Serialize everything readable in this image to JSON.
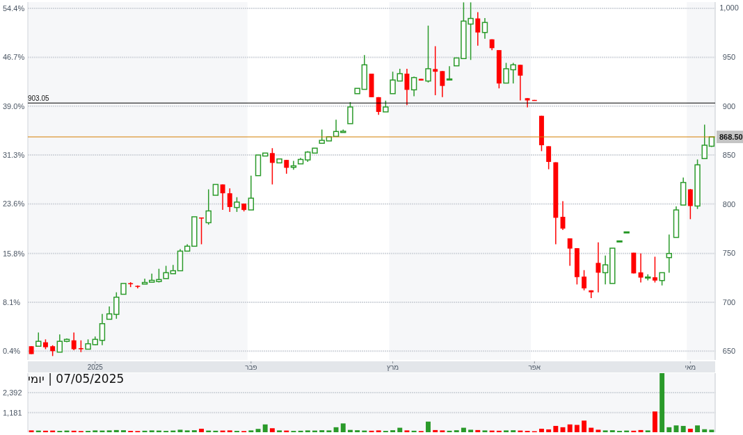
{
  "chart_data": [
    {
      "type": "candlestick",
      "categories": [
        null,
        null,
        null,
        null,
        null,
        null,
        null,
        null,
        null,
        "2025",
        null,
        null,
        null,
        null,
        null,
        null,
        null,
        null,
        null,
        null,
        null,
        null,
        null,
        null,
        null,
        null,
        null,
        null,
        null,
        null,
        null,
        "פבר",
        null,
        null,
        null,
        null,
        null,
        null,
        null,
        null,
        null,
        null,
        null,
        null,
        null,
        null,
        null,
        null,
        null,
        null,
        null,
        "מרץ",
        null,
        null,
        null,
        null,
        null,
        null,
        null,
        null,
        null,
        null,
        null,
        null,
        null,
        null,
        null,
        null,
        null,
        null,
        null,
        "אפר",
        null,
        null,
        null,
        null,
        null,
        null,
        null,
        null,
        null,
        null,
        null,
        null,
        null,
        null,
        null,
        null,
        null,
        null,
        null,
        null,
        null,
        "מאי",
        null,
        null,
        null
      ],
      "series": [
        {
          "axis": "y2",
          "ohlc": [
            [
              655,
              655,
              647,
              647
            ],
            [
              655,
              669,
              655,
              660
            ],
            [
              659,
              662,
              652,
              654
            ],
            [
              655,
              656,
              645,
              650
            ],
            [
              649,
              667,
              649,
              660
            ],
            [
              660,
              663,
              659,
              662
            ],
            [
              661,
              669,
              651,
              652
            ],
            [
              653,
              661,
              649,
              652.5
            ],
            [
              652,
              662,
              652,
              657.5
            ],
            [
              656.6,
              665,
              656,
              662
            ],
            [
              661,
              688,
              656,
              678
            ],
            [
              682.5,
              695.5,
              682.5,
              688
            ],
            [
              687.5,
              710,
              683,
              705
            ],
            [
              708,
              719,
              708,
              719
            ],
            [
              719.3,
              720.3,
              715.3,
              719
            ],
            [
              716.6,
              717,
              714,
              716.3
            ],
            [
              718.4,
              724,
              718.4,
              720
            ],
            [
              720.3,
              729,
              720.3,
              722.2
            ],
            [
              721,
              734,
              720,
              723
            ],
            [
              724,
              737,
              724,
              730
            ],
            [
              729,
              738,
              729,
              732
            ],
            [
              732,
              754,
              732,
              752
            ],
            [
              752,
              759,
              752,
              757
            ],
            [
              757,
              787,
              757,
              787
            ],
            [
              786.3,
              786.3,
              759,
              786
            ],
            [
              781,
              815,
              779,
              793
            ],
            [
              809,
              820,
              809,
              820
            ],
            [
              820,
              820,
              794,
              811
            ],
            [
              811,
              816,
              792,
              797
            ],
            [
              796.5,
              807,
              792,
              802
            ],
            [
              800.5,
              800.5,
              792.5,
              794
            ],
            [
              794,
              829,
              794,
              806
            ],
            [
              829,
              850,
              829,
              850
            ],
            [
              849,
              852,
              849,
              852
            ],
            [
              852,
              857,
              820,
              842
            ],
            [
              842,
              846,
              842,
              846
            ],
            [
              845,
              845,
              831,
              837
            ],
            [
              837.5,
              844,
              835,
              839
            ],
            [
              841,
              847,
              841,
              845.5
            ],
            [
              845,
              854,
              843,
              853
            ],
            [
              852,
              857,
              852,
              857
            ],
            [
              862,
              876,
              862,
              865
            ],
            [
              864.4,
              869,
              864.4,
              868.6
            ],
            [
              869,
              886,
              869,
              874
            ],
            [
              873,
              876,
              873,
              874.3
            ],
            [
              882,
              904,
              882,
              899
            ],
            [
              912.6,
              918,
              912.6,
              918
            ],
            [
              917,
              952,
              917,
              942
            ],
            [
              933,
              933,
              909,
              909
            ],
            [
              909,
              909,
              891,
              894
            ],
            [
              894,
              905.5,
              894,
              899
            ],
            [
              912.6,
              935,
              912.6,
              926.5
            ],
            [
              925.5,
              938,
              925.5,
              933
            ],
            [
              933,
              938,
              901,
              916.5
            ],
            [
              916.5,
              930,
              910,
              929
            ],
            [
              927.7,
              927.7,
              926,
              926
            ],
            [
              925.5,
              982,
              924,
              938
            ],
            [
              937.7,
              961,
              911,
              935
            ],
            [
              935.6,
              935.6,
              909,
              920.5
            ],
            [
              927.4,
              940.6,
              927,
              927.6
            ],
            [
              941,
              949,
              941,
              949
            ],
            [
              948.4,
              1005.7,
              948.4,
              986.6
            ],
            [
              983.6,
              1005.7,
              947,
              989.3
            ],
            [
              989.3,
              995.7,
              961.6,
              975
            ],
            [
              975,
              989.7,
              968.7,
              985.2
            ],
            [
              968,
              968,
              957,
              959
            ],
            [
              957,
              957,
              918,
              923
            ],
            [
              923.4,
              944,
              923.4,
              938
            ],
            [
              937,
              944,
              923,
              942
            ],
            [
              942,
              942,
              905.7,
              931
            ],
            [
              908,
              908,
              898.6,
              905.7
            ],
            [
              906.2,
              906.2,
              905.7,
              905.7
            ],
            [
              890,
              890,
              854,
              860
            ],
            [
              859,
              859,
              835.5,
              843
            ],
            [
              842.6,
              842.6,
              759,
              786
            ],
            [
              787,
              803,
              773.5,
              775
            ],
            [
              765,
              765,
              737,
              754.6
            ],
            [
              755,
              755,
              718,
              725.5
            ],
            [
              726,
              732.6,
              712,
              714
            ],
            [
              712,
              712,
              704,
              710
            ],
            [
              740,
              761,
              710,
              730
            ],
            [
              730,
              747.5,
              718,
              738
            ],
            [
              719,
              755,
              719,
              755
            ],
            [
              762,
              762.4,
              762,
              762.4
            ],
            [
              771.4,
              771.6,
              771.4,
              771.6
            ],
            [
              750.4,
              750.4,
              729.3,
              729.3
            ],
            [
              730.3,
              749.6,
              720,
              725
            ],
            [
              725.4,
              728.4,
              722.2,
              725.6
            ],
            [
              725.3,
              746.3,
              720,
              722
            ],
            [
              722,
              730,
              717,
              730
            ],
            [
              745.4,
              769,
              730,
              749.6
            ],
            [
              766,
              797.6,
              766,
              794
            ],
            [
              799,
              827,
              799,
              822
            ],
            [
              815,
              815.4,
              784.6,
              798
            ],
            [
              798,
              845.5,
              795,
              840
            ],
            [
              846.4,
              881,
              846.4,
              860
            ],
            [
              859,
              868.5,
              858.3,
              868.5
            ]
          ],
          "colors": [
            "#ff0000",
            "#2a9a2a",
            "#ff0000",
            "#ff0000",
            "#2a9a2a",
            "#2a9a2a",
            "#ff0000",
            "#ff0000",
            "#2a9a2a",
            "#2a9a2a",
            "#2a9a2a",
            "#2a9a2a",
            "#2a9a2a",
            "#2a9a2a",
            "#ff0000",
            "#ff0000",
            "#2a9a2a",
            "#2a9a2a",
            "#2a9a2a",
            "#2a9a2a",
            "#2a9a2a",
            "#2a9a2a",
            "#2a9a2a",
            "#2a9a2a",
            "#ff0000",
            "#2a9a2a",
            "#2a9a2a",
            "#ff0000",
            "#ff0000",
            "#2a9a2a",
            "#ff0000",
            "#2a9a2a",
            "#2a9a2a",
            "#2a9a2a",
            "#ff0000",
            "#2a9a2a",
            "#ff0000",
            "#2a9a2a",
            "#2a9a2a",
            "#2a9a2a",
            "#2a9a2a",
            "#2a9a2a",
            "#2a9a2a",
            "#2a9a2a",
            "#2a9a2a",
            "#2a9a2a",
            "#2a9a2a",
            "#2a9a2a",
            "#ff0000",
            "#ff0000",
            "#2a9a2a",
            "#2a9a2a",
            "#2a9a2a",
            "#ff0000",
            "#2a9a2a",
            "#ff0000",
            "#2a9a2a",
            "#ff0000",
            "#ff0000",
            "#2a9a2a",
            "#2a9a2a",
            "#2a9a2a",
            "#2a9a2a",
            "#ff0000",
            "#2a9a2a",
            "#ff0000",
            "#ff0000",
            "#2a9a2a",
            "#2a9a2a",
            "#ff0000",
            "#ff0000",
            "#ff0000",
            "#ff0000",
            "#ff0000",
            "#ff0000",
            "#ff0000",
            "#ff0000",
            "#ff0000",
            "#ff0000",
            "#ff0000",
            "#ff0000",
            "#2a9a2a",
            "#2a9a2a",
            "#2a9a2a",
            "#2a9a2a",
            "#ff0000",
            "#ff0000",
            "#2a9a2a",
            "#ff0000",
            "#2a9a2a",
            "#2a9a2a",
            "#2a9a2a",
            "#2a9a2a",
            "#ff0000",
            "#2a9a2a",
            "#2a9a2a",
            "#2a9a2a"
          ]
        }
      ],
      "ylim": [
        -0.99,
        55.39
      ],
      "yticks": [
        {
          "value": 0.4,
          "label": "0.4%"
        },
        {
          "value": 8.1,
          "label": "8.1%"
        },
        {
          "value": 15.8,
          "label": "15.8%"
        },
        {
          "value": 23.6,
          "label": "23.6%"
        },
        {
          "value": 31.3,
          "label": "31.3%"
        },
        {
          "value": 39.0,
          "label": "39.0%"
        },
        {
          "value": 46.7,
          "label": "46.7%"
        },
        {
          "value": 54.4,
          "label": "54.4%"
        }
      ],
      "y2lim": [
        641,
        1006
      ],
      "y2ticks": [
        650,
        700,
        750,
        800,
        850,
        900,
        950,
        {
          "value": 1000,
          "label": "1,000"
        }
      ],
      "grid": "y",
      "ref_lines": [
        {
          "axis": "y2",
          "value": 903.05,
          "label": "903.05",
          "color": "#000000"
        },
        {
          "axis": "y2",
          "value": 868.5,
          "label": "868.50",
          "color": "#d47f00"
        }
      ],
      "bands": [
        {
          "axis": "x",
          "from": "פבר",
          "to": "מרץ",
          "color": "#ffffff"
        },
        {
          "axis": "x",
          "from": "אפר",
          "to": "מאי",
          "color": "#ffffff"
        }
      ]
    },
    {
      "type": "bar",
      "categories": [
        null,
        null,
        null,
        null,
        null,
        null,
        null,
        null,
        null,
        null,
        null,
        null,
        null,
        null,
        null,
        null,
        null,
        null,
        null,
        null,
        null,
        null,
        null,
        null,
        null,
        null,
        null,
        null,
        null,
        null,
        null,
        null,
        null,
        null,
        null,
        null,
        null,
        null,
        null,
        null,
        null,
        null,
        null,
        null,
        null,
        null,
        null,
        null,
        null,
        null,
        null,
        null,
        null,
        null,
        null,
        null,
        null,
        null,
        null,
        null,
        null,
        null,
        null,
        null,
        null,
        null,
        null,
        null,
        null,
        null,
        null,
        null,
        null,
        null,
        null,
        null,
        null,
        null,
        null,
        null,
        null,
        null,
        null,
        null,
        null,
        null,
        null,
        null,
        null,
        null,
        null,
        null,
        null,
        null,
        null,
        null,
        null
      ],
      "values": [
        110,
        100,
        90,
        100,
        80,
        100,
        90,
        70,
        80,
        110,
        100,
        110,
        130,
        120,
        80,
        70,
        90,
        110,
        100,
        80,
        100,
        150,
        110,
        120,
        210,
        100,
        90,
        100,
        110,
        80,
        70,
        110,
        200,
        470,
        240,
        110,
        100,
        80,
        90,
        110,
        100,
        120,
        110,
        300,
        530,
        140,
        120,
        100,
        90,
        110,
        80,
        120,
        270,
        110,
        90,
        70,
        640,
        130,
        110,
        90,
        120,
        270,
        150,
        130,
        110,
        100,
        90,
        110,
        120,
        100,
        80,
        60,
        210,
        170,
        380,
        300,
        470,
        440,
        700,
        270,
        150,
        110,
        120,
        80,
        100,
        90,
        130,
        110,
        1250,
        3560,
        300,
        410,
        380,
        210,
        410,
        180,
        150
      ],
      "colors": [
        "#ff0000",
        "#2a9a2a",
        "#ff0000",
        "#ff0000",
        "#2a9a2a",
        "#2a9a2a",
        "#ff0000",
        "#ff0000",
        "#2a9a2a",
        "#2a9a2a",
        "#2a9a2a",
        "#2a9a2a",
        "#2a9a2a",
        "#2a9a2a",
        "#ff0000",
        "#ff0000",
        "#2a9a2a",
        "#2a9a2a",
        "#2a9a2a",
        "#2a9a2a",
        "#2a9a2a",
        "#2a9a2a",
        "#2a9a2a",
        "#2a9a2a",
        "#ff0000",
        "#2a9a2a",
        "#2a9a2a",
        "#ff0000",
        "#ff0000",
        "#2a9a2a",
        "#ff0000",
        "#2a9a2a",
        "#2a9a2a",
        "#2a9a2a",
        "#ff0000",
        "#2a9a2a",
        "#ff0000",
        "#2a9a2a",
        "#2a9a2a",
        "#2a9a2a",
        "#2a9a2a",
        "#2a9a2a",
        "#2a9a2a",
        "#2a9a2a",
        "#2a9a2a",
        "#2a9a2a",
        "#2a9a2a",
        "#2a9a2a",
        "#ff0000",
        "#ff0000",
        "#2a9a2a",
        "#2a9a2a",
        "#2a9a2a",
        "#ff0000",
        "#2a9a2a",
        "#ff0000",
        "#2a9a2a",
        "#ff0000",
        "#ff0000",
        "#2a9a2a",
        "#2a9a2a",
        "#2a9a2a",
        "#2a9a2a",
        "#ff0000",
        "#2a9a2a",
        "#ff0000",
        "#ff0000",
        "#2a9a2a",
        "#2a9a2a",
        "#ff0000",
        "#ff0000",
        "#ff0000",
        "#ff0000",
        "#ff0000",
        "#ff0000",
        "#ff0000",
        "#ff0000",
        "#ff0000",
        "#ff0000",
        "#ff0000",
        "#ff0000",
        "#2a9a2a",
        "#2a9a2a",
        "#2a9a2a",
        "#2a9a2a",
        "#ff0000",
        "#ff0000",
        "#2a9a2a",
        "#ff0000",
        "#2a9a2a",
        "#2a9a2a",
        "#2a9a2a",
        "#2a9a2a",
        "#ff0000",
        "#2a9a2a",
        "#2a9a2a",
        "#2a9a2a"
      ],
      "ylim": [
        0,
        3560
      ],
      "yticks": [
        {
          "value": 1181,
          "label": "1,181"
        },
        {
          "value": 2392,
          "label": "2,392"
        }
      ],
      "grid": "y",
      "tick_labels": "y",
      "annotations": [
        "07/05/2025 | יומי"
      ]
    }
  ]
}
